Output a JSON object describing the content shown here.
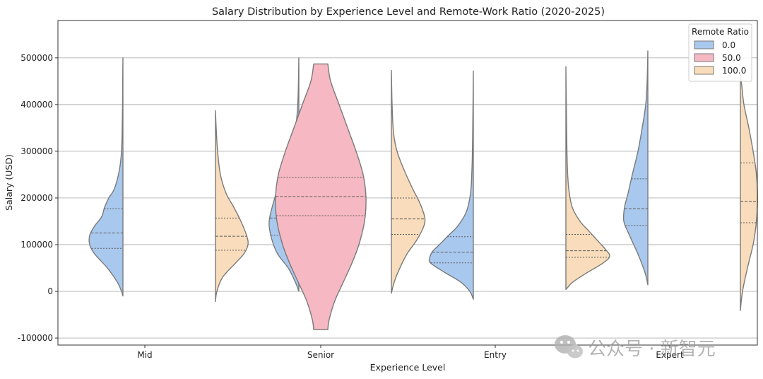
{
  "chart_data": {
    "type": "violin",
    "title": "Salary Distribution by Experience Level and Remote-Work Ratio (2020-2025)",
    "xlabel": "Experience Level",
    "ylabel": "Salary (USD)",
    "ylim": [
      -115000,
      580000
    ],
    "yticks": [
      -100000,
      0,
      100000,
      200000,
      300000,
      400000,
      500000
    ],
    "ytick_labels": [
      "-100000",
      "0",
      "100000",
      "200000",
      "300000",
      "400000",
      "500000"
    ],
    "categories": [
      "Mid",
      "Senior",
      "Entry",
      "Expert"
    ],
    "grid": "y",
    "legend": {
      "title": "Remote Ratio",
      "placement": "top-right"
    },
    "series": [
      {
        "name": "0.0",
        "color": "#a9c8ee",
        "side": "left"
      },
      {
        "name": "50.0",
        "color": "#f6b8c2",
        "side": "full"
      },
      {
        "name": "100.0",
        "color": "#f8dcbb",
        "side": "right"
      }
    ],
    "violins": [
      {
        "category": "Mid",
        "series": "0.0",
        "side": "left",
        "quartiles": [
          92000,
          125000,
          177000
        ],
        "range": [
          -10000,
          500000
        ],
        "profile": [
          [
            -10000,
            0
          ],
          [
            0,
            2
          ],
          [
            20000,
            8
          ],
          [
            50000,
            22
          ],
          [
            80000,
            40
          ],
          [
            100000,
            47
          ],
          [
            120000,
            47
          ],
          [
            140000,
            40
          ],
          [
            160000,
            30
          ],
          [
            180000,
            26
          ],
          [
            200000,
            20
          ],
          [
            220000,
            12
          ],
          [
            260000,
            5
          ],
          [
            300000,
            2
          ],
          [
            350000,
            1
          ],
          [
            400000,
            0.5
          ],
          [
            450000,
            0.3
          ],
          [
            500000,
            0
          ]
        ]
      },
      {
        "category": "Mid",
        "series": "100.0",
        "side": "right",
        "quartiles": [
          88000,
          118000,
          157000
        ],
        "range": [
          -22000,
          387000
        ],
        "profile": [
          [
            -22000,
            0
          ],
          [
            0,
            2
          ],
          [
            30000,
            10
          ],
          [
            60000,
            28
          ],
          [
            80000,
            40
          ],
          [
            100000,
            46
          ],
          [
            120000,
            44
          ],
          [
            150000,
            36
          ],
          [
            180000,
            26
          ],
          [
            210000,
            15
          ],
          [
            250000,
            7
          ],
          [
            300000,
            3
          ],
          [
            350000,
            1
          ],
          [
            387000,
            0
          ]
        ]
      },
      {
        "category": "Senior",
        "series": "0.0",
        "side": "left",
        "quartiles": [
          120000,
          157000,
          207000
        ],
        "range": [
          0,
          500000
        ],
        "profile": [
          [
            0,
            0
          ],
          [
            20000,
            5
          ],
          [
            50000,
            15
          ],
          [
            80000,
            30
          ],
          [
            110000,
            38
          ],
          [
            140000,
            42
          ],
          [
            160000,
            41
          ],
          [
            190000,
            36
          ],
          [
            220000,
            30
          ],
          [
            250000,
            22
          ],
          [
            280000,
            14
          ],
          [
            320000,
            7
          ],
          [
            370000,
            3
          ],
          [
            420000,
            1
          ],
          [
            500000,
            0
          ]
        ]
      },
      {
        "category": "Senior",
        "series": "50.0",
        "side": "full",
        "quartiles": [
          162000,
          203000,
          244000
        ],
        "range": [
          -82000,
          487000
        ],
        "profile": [
          [
            -82000,
            10
          ],
          [
            -60000,
            12
          ],
          [
            -20000,
            20
          ],
          [
            20000,
            32
          ],
          [
            60000,
            44
          ],
          [
            100000,
            54
          ],
          [
            150000,
            62
          ],
          [
            200000,
            64
          ],
          [
            250000,
            60
          ],
          [
            300000,
            50
          ],
          [
            350000,
            38
          ],
          [
            400000,
            26
          ],
          [
            450000,
            14
          ],
          [
            487000,
            10
          ]
        ]
      },
      {
        "category": "Senior",
        "series": "100.0",
        "side": "right",
        "quartiles": [
          122000,
          155000,
          200000
        ],
        "range": [
          -4000,
          473000
        ],
        "profile": [
          [
            -4000,
            0
          ],
          [
            20000,
            4
          ],
          [
            50000,
            12
          ],
          [
            80000,
            22
          ],
          [
            110000,
            36
          ],
          [
            140000,
            46
          ],
          [
            160000,
            47
          ],
          [
            190000,
            40
          ],
          [
            220000,
            30
          ],
          [
            260000,
            18
          ],
          [
            300000,
            8
          ],
          [
            340000,
            3
          ],
          [
            400000,
            1
          ],
          [
            473000,
            0
          ]
        ]
      },
      {
        "category": "Entry",
        "series": "0.0",
        "side": "left",
        "quartiles": [
          61000,
          84000,
          117000
        ],
        "range": [
          -17000,
          472000
        ],
        "profile": [
          [
            -17000,
            0
          ],
          [
            0,
            5
          ],
          [
            20000,
            18
          ],
          [
            40000,
            40
          ],
          [
            60000,
            60
          ],
          [
            70000,
            62
          ],
          [
            85000,
            58
          ],
          [
            100000,
            48
          ],
          [
            120000,
            35
          ],
          [
            140000,
            22
          ],
          [
            170000,
            10
          ],
          [
            210000,
            4
          ],
          [
            260000,
            2
          ],
          [
            330000,
            1
          ],
          [
            472000,
            0
          ]
        ]
      },
      {
        "category": "Entry",
        "series": "100.0",
        "side": "right",
        "quartiles": [
          73000,
          87000,
          122000
        ],
        "range": [
          4000,
          481000
        ],
        "profile": [
          [
            4000,
            0
          ],
          [
            20000,
            10
          ],
          [
            40000,
            30
          ],
          [
            60000,
            52
          ],
          [
            75000,
            62
          ],
          [
            90000,
            56
          ],
          [
            110000,
            44
          ],
          [
            130000,
            32
          ],
          [
            150000,
            20
          ],
          [
            180000,
            9
          ],
          [
            220000,
            4
          ],
          [
            270000,
            2
          ],
          [
            350000,
            1
          ],
          [
            481000,
            0
          ]
        ]
      },
      {
        "category": "Expert",
        "series": "0.0",
        "side": "left",
        "quartiles": [
          141000,
          177000,
          241000
        ],
        "range": [
          14000,
          515000
        ],
        "profile": [
          [
            14000,
            0
          ],
          [
            40000,
            4
          ],
          [
            80000,
            14
          ],
          [
            120000,
            26
          ],
          [
            150000,
            34
          ],
          [
            180000,
            33
          ],
          [
            210000,
            28
          ],
          [
            250000,
            22
          ],
          [
            300000,
            14
          ],
          [
            350000,
            8
          ],
          [
            400000,
            3
          ],
          [
            450000,
            1
          ],
          [
            515000,
            0
          ]
        ]
      },
      {
        "category": "Expert",
        "series": "100.0",
        "side": "right",
        "quartiles": [
          147000,
          193000,
          275000
        ],
        "range": [
          -41000,
          465000
        ],
        "profile": [
          [
            -41000,
            0
          ],
          [
            0,
            3
          ],
          [
            50000,
            10
          ],
          [
            100000,
            18
          ],
          [
            140000,
            22
          ],
          [
            180000,
            24
          ],
          [
            220000,
            24
          ],
          [
            260000,
            22
          ],
          [
            300000,
            18
          ],
          [
            350000,
            12
          ],
          [
            400000,
            5
          ],
          [
            440000,
            2
          ],
          [
            465000,
            0
          ]
        ]
      }
    ]
  },
  "watermark": {
    "text": "公众号 · 新智元",
    "icon": "wechat-icon"
  }
}
